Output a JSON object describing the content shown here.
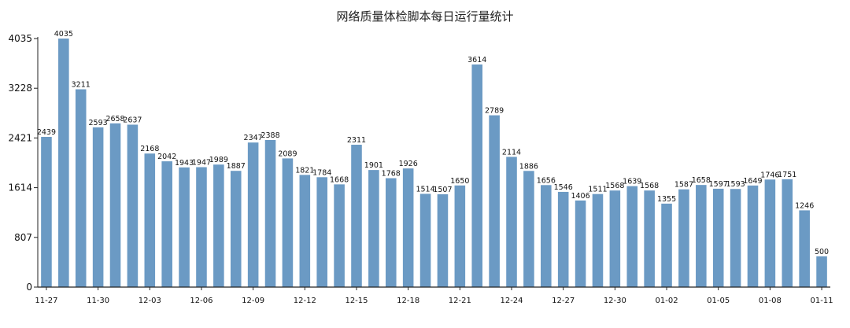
{
  "chart_data": {
    "type": "bar",
    "title": "网络质量体检脚本每日运行量统计",
    "xlabel": "",
    "ylabel": "",
    "ylim": [
      0,
      4035
    ],
    "yticks": [
      0,
      807,
      1614,
      2421,
      3228,
      4035
    ],
    "grid": false,
    "color": "#6b9ac4",
    "categories": [
      "11-27",
      "11-28",
      "11-29",
      "11-30",
      "12-01",
      "12-02",
      "12-03",
      "12-04",
      "12-05",
      "12-06",
      "12-07",
      "12-08",
      "12-09",
      "12-10",
      "12-11",
      "12-12",
      "12-13",
      "12-14",
      "12-15",
      "12-16",
      "12-17",
      "12-18",
      "12-19",
      "12-20",
      "12-21",
      "12-22",
      "12-23",
      "12-24",
      "12-25",
      "12-26",
      "12-27",
      "12-28",
      "12-29",
      "12-30",
      "12-31",
      "01-01",
      "01-02",
      "01-03",
      "01-04",
      "01-05",
      "01-06",
      "01-07",
      "01-08",
      "01-09",
      "01-10",
      "01-11"
    ],
    "xtick_labels": [
      "11-27",
      "11-30",
      "12-03",
      "12-06",
      "12-09",
      "12-12",
      "12-15",
      "12-18",
      "12-21",
      "12-24",
      "12-27",
      "12-30",
      "01-02",
      "01-05",
      "01-08",
      "01-11"
    ],
    "values": [
      2439,
      4035,
      3211,
      2593,
      2658,
      2637,
      2168,
      2042,
      1943,
      1947,
      1989,
      1887,
      2347,
      2388,
      2089,
      1821,
      1784,
      1668,
      2311,
      1901,
      1768,
      1926,
      1514,
      1507,
      1650,
      3614,
      2789,
      2114,
      1886,
      1656,
      1546,
      1406,
      1511,
      1568,
      1639,
      1568,
      1355,
      1587,
      1658,
      1597,
      1593,
      1649,
      1746,
      1751,
      1246,
      500
    ]
  }
}
